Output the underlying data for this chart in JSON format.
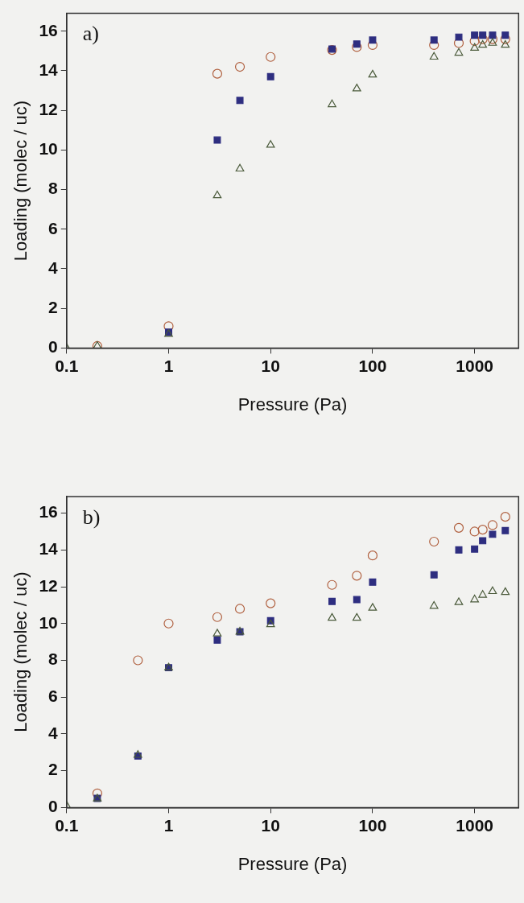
{
  "chart_data": [
    {
      "type": "scatter",
      "xlabel": "Pressure (Pa)",
      "ylabel": "Loading (molec / uc)",
      "annotations": [
        "a)"
      ],
      "log": "x",
      "x": [
        0.1,
        0.2,
        1,
        3,
        5,
        10,
        40,
        70,
        100,
        400,
        700,
        1000,
        1200,
        1500,
        2000
      ],
      "xlim": [
        0.1,
        2700
      ],
      "xticks": [
        0.1,
        1,
        10,
        100,
        1000
      ],
      "ylim": [
        0,
        16.9
      ],
      "yticks": [
        0,
        2,
        4,
        6,
        8,
        10,
        12,
        14,
        16
      ],
      "series": [
        {
          "color": "#b0603f",
          "marker": "circle",
          "values": [
            null,
            0.1,
            1.1,
            13.85,
            14.2,
            14.7,
            15.05,
            15.2,
            15.3,
            15.3,
            15.4,
            15.5,
            15.6,
            15.6,
            15.6
          ]
        },
        {
          "color": "#2e2e80",
          "marker": "square",
          "values": [
            null,
            null,
            0.8,
            10.5,
            12.5,
            13.7,
            15.1,
            15.35,
            15.55,
            15.55,
            15.7,
            15.8,
            15.8,
            15.8,
            15.8
          ]
        },
        {
          "color": "#4a5a3a",
          "marker": "triangle",
          "values": [
            0,
            0.1,
            0.7,
            7.7,
            9.05,
            10.25,
            12.3,
            13.1,
            13.8,
            14.7,
            14.9,
            15.15,
            15.3,
            15.4,
            15.3
          ]
        }
      ]
    },
    {
      "type": "scatter",
      "xlabel": "Pressure (Pa)",
      "ylabel": "Loading (molec / uc)",
      "annotations": [
        "b)"
      ],
      "log": "x",
      "x": [
        0.1,
        0.2,
        0.5,
        1,
        3,
        5,
        10,
        40,
        70,
        100,
        400,
        700,
        1000,
        1200,
        1500,
        2000
      ],
      "xlim": [
        0.1,
        2700
      ],
      "xticks": [
        0.1,
        1,
        10,
        100,
        1000
      ],
      "ylim": [
        0,
        16.9
      ],
      "yticks": [
        0,
        2,
        4,
        6,
        8,
        10,
        12,
        14,
        16
      ],
      "series": [
        {
          "color": "#b0603f",
          "marker": "circle",
          "values": [
            null,
            0.77,
            8.0,
            10.0,
            10.35,
            10.8,
            11.1,
            12.1,
            12.6,
            13.7,
            14.45,
            15.2,
            15.0,
            15.1,
            15.35,
            15.8
          ]
        },
        {
          "color": "#2e2e80",
          "marker": "square",
          "values": [
            null,
            0.5,
            2.8,
            7.6,
            9.1,
            9.55,
            10.15,
            11.2,
            11.3,
            12.25,
            12.65,
            14.0,
            14.05,
            14.5,
            14.85,
            15.05
          ]
        },
        {
          "color": "#4a5a3a",
          "marker": "triangle",
          "values": [
            0.1,
            0.48,
            2.85,
            7.6,
            9.45,
            9.55,
            9.95,
            10.3,
            10.3,
            10.85,
            10.95,
            11.15,
            11.3,
            11.55,
            11.75,
            11.7
          ]
        }
      ]
    }
  ]
}
